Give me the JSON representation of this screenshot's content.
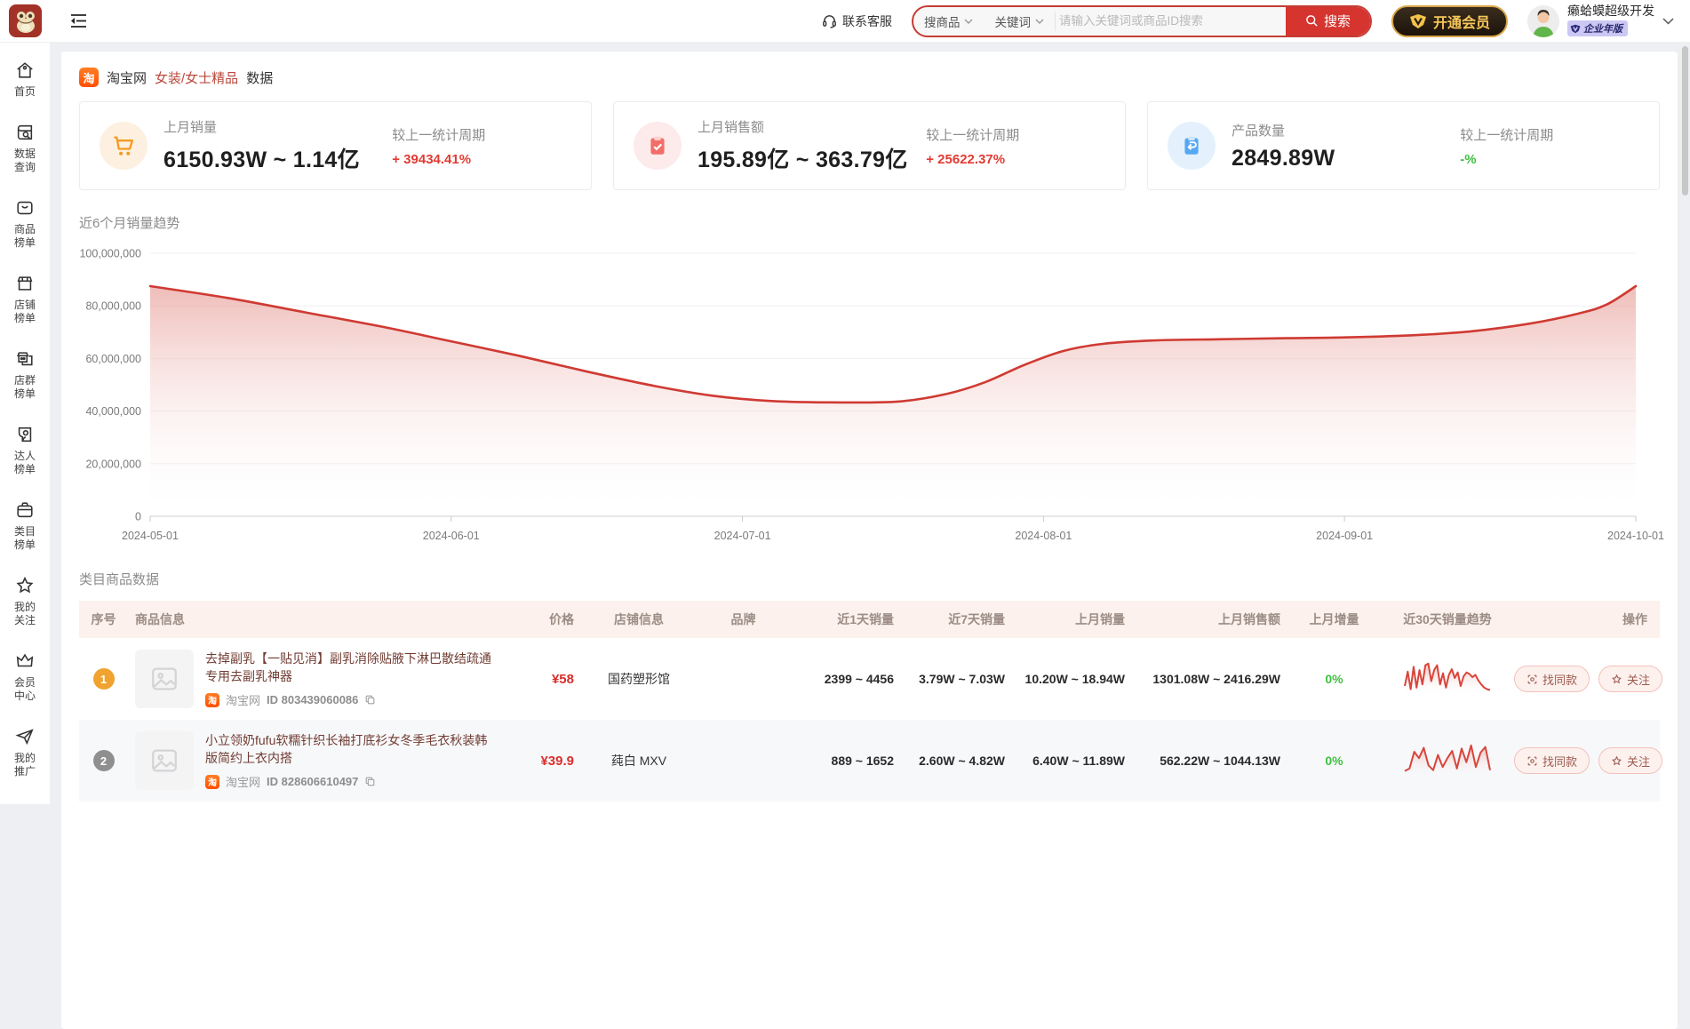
{
  "topbar": {
    "contact_label": "联系客服",
    "search": {
      "scope_label": "搜商品",
      "type_label": "关键词",
      "placeholder": "请输入关键词或商品ID搜索",
      "button_label": "搜索"
    },
    "vip_button_label": "开通会员",
    "username": "癞蛤蟆超级开发",
    "user_badge": "企业年版",
    "icons": [
      "app-logo",
      "menu-fold-icon",
      "headset-icon",
      "chevron-down-icon",
      "search-icon",
      "vip-shield-icon",
      "avatar"
    ]
  },
  "sidebar": {
    "items": [
      {
        "label": "首页",
        "icon": "home-icon"
      },
      {
        "label": "数据\n查询",
        "icon": "data-search-icon"
      },
      {
        "label": "商品\n榜单",
        "icon": "product-rank-icon"
      },
      {
        "label": "店铺\n榜单",
        "icon": "shop-rank-icon"
      },
      {
        "label": "店群\n榜单",
        "icon": "shop-group-rank-icon"
      },
      {
        "label": "达人\n榜单",
        "icon": "influencer-rank-icon"
      },
      {
        "label": "类目\n榜单",
        "icon": "category-rank-icon"
      },
      {
        "label": "我的\n关注",
        "icon": "star-icon"
      },
      {
        "label": "会员\n中心",
        "icon": "crown-icon"
      },
      {
        "label": "我的\n推广",
        "icon": "paper-plane-icon"
      }
    ]
  },
  "breadcrumb": {
    "site": "淘宝网",
    "category": "女装/女士精品",
    "suffix": "数据",
    "site_icon": "taobao-icon"
  },
  "cards": [
    {
      "label": "上月销量",
      "value": "6150.93W ~ 1.14亿",
      "compare_label": "较上一统计周期",
      "delta": "+ 39434.41%",
      "delta_color": "#e23b33",
      "icon": "cart-icon"
    },
    {
      "label": "上月销售额",
      "value": "195.89亿 ~ 363.79亿",
      "compare_label": "较上一统计周期",
      "delta": "+ 25622.37%",
      "delta_color": "#e23b33",
      "icon": "clipboard-check-icon"
    },
    {
      "label": "产品数量",
      "value": "2849.89W",
      "compare_label": "较上一统计周期",
      "delta": "-%",
      "delta_color": "#3fbf3f",
      "icon": "clipboard-return-icon"
    }
  ],
  "chart_data": {
    "type": "area",
    "title": "近6个月销量趋势",
    "line_color": "#cf3a32",
    "grid": true,
    "legend": "none",
    "ylim": [
      0,
      100000000
    ],
    "y_ticks": [
      0,
      20000000,
      40000000,
      60000000,
      80000000,
      100000000
    ],
    "y_tick_labels": [
      "0",
      "20,000,000",
      "40,000,000",
      "60,000,000",
      "80,000,000",
      "100,000,000"
    ],
    "x_tick_labels": [
      "2024-05-01",
      "2024-06-01",
      "2024-07-01",
      "2024-08-01",
      "2024-09-01",
      "2024-10-01"
    ],
    "x_tick_days": [
      0,
      31,
      61,
      92,
      123,
      153
    ],
    "x_total_days": 153,
    "points": [
      [
        0,
        87500000
      ],
      [
        8,
        83000000
      ],
      [
        16,
        77500000
      ],
      [
        24,
        72000000
      ],
      [
        31,
        66500000
      ],
      [
        38,
        61000000
      ],
      [
        45,
        55000000
      ],
      [
        52,
        49500000
      ],
      [
        58,
        45800000
      ],
      [
        64,
        43800000
      ],
      [
        70,
        43300000
      ],
      [
        77,
        43600000
      ],
      [
        82,
        46500000
      ],
      [
        86,
        51000000
      ],
      [
        90,
        57500000
      ],
      [
        94,
        62800000
      ],
      [
        98,
        65500000
      ],
      [
        103,
        66800000
      ],
      [
        110,
        67300000
      ],
      [
        117,
        67700000
      ],
      [
        123,
        68000000
      ],
      [
        130,
        68800000
      ],
      [
        136,
        70300000
      ],
      [
        142,
        73200000
      ],
      [
        147,
        77000000
      ],
      [
        150,
        80500000
      ],
      [
        153,
        87500000
      ]
    ]
  },
  "table": {
    "title": "类目商品数据",
    "columns": [
      "序号",
      "商品信息",
      "价格",
      "店铺信息",
      "品牌",
      "近1天销量",
      "近7天销量",
      "上月销量",
      "上月销售额",
      "上月增量",
      "近30天销量趋势",
      "操作"
    ],
    "source_label": "淘宝网",
    "actions": {
      "find_same": "找同款",
      "follow": "关注"
    },
    "rows": [
      {
        "rank": "1",
        "title": "去掉副乳【一贴见消】副乳消除贴腋下淋巴散结疏通专用去副乳神器",
        "product_id": "ID 803439060086",
        "price": "¥58",
        "shop": "国药塑形馆",
        "brand": "",
        "day1_sales": "2399 ~ 4456",
        "day7_sales": "3.79W ~ 7.03W",
        "month_sales": "10.20W ~ 18.94W",
        "month_amount": "1301.08W ~ 2416.29W",
        "month_growth": "0%",
        "spark": [
          10,
          28,
          6,
          34,
          8,
          30,
          12,
          36,
          38,
          16,
          30,
          36,
          12,
          26,
          8,
          24,
          31,
          20,
          27,
          10,
          22,
          27,
          25,
          21,
          24,
          17,
          12,
          8,
          6,
          5
        ]
      },
      {
        "rank": "2",
        "title": "小立领奶fufu软糯针织长袖打底衫女冬季毛衣秋装韩版简约上衣内搭",
        "product_id": "ID 828606610497",
        "price": "¥39.9",
        "shop": "莼白 MXV",
        "brand": "",
        "day1_sales": "889 ~ 1652",
        "day7_sales": "2.60W ~ 4.82W",
        "month_sales": "6.40W ~ 11.89W",
        "month_amount": "562.22W ~ 1044.13W",
        "month_growth": "0%",
        "spark": [
          6,
          9,
          30,
          22,
          35,
          13,
          7,
          26,
          11,
          22,
          31,
          9,
          34,
          17,
          38,
          11,
          29,
          36,
          7
        ]
      }
    ]
  }
}
